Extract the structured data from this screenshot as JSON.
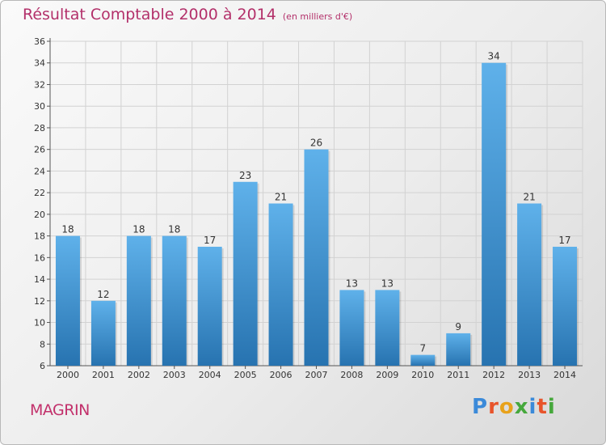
{
  "header": {
    "title": "Résultat Comptable 2000 à 2014",
    "subtitle": "(en milliers d'€)"
  },
  "footer": {
    "place": "MAGRIN",
    "brand": "Proxiti"
  },
  "colors": {
    "title": "#b3306a",
    "bar_top": "#5fb1ea",
    "bar_bottom": "#2773b0"
  },
  "chart_data": {
    "type": "bar",
    "title": "Résultat Comptable 2000 à 2014",
    "subtitle": "(en milliers d'€)",
    "xlabel": "",
    "ylabel": "",
    "categories": [
      "2000",
      "2001",
      "2002",
      "2003",
      "2004",
      "2005",
      "2006",
      "2007",
      "2008",
      "2009",
      "2010",
      "2011",
      "2012",
      "2013",
      "2014"
    ],
    "values": [
      18,
      12,
      18,
      18,
      17,
      23,
      21,
      26,
      13,
      13,
      7,
      9,
      34,
      21,
      17
    ],
    "ylim": [
      6,
      36
    ],
    "yticks": [
      6,
      8,
      10,
      12,
      14,
      16,
      18,
      20,
      22,
      24,
      26,
      28,
      30,
      32,
      34,
      36
    ],
    "grid": true,
    "data_labels": true
  }
}
